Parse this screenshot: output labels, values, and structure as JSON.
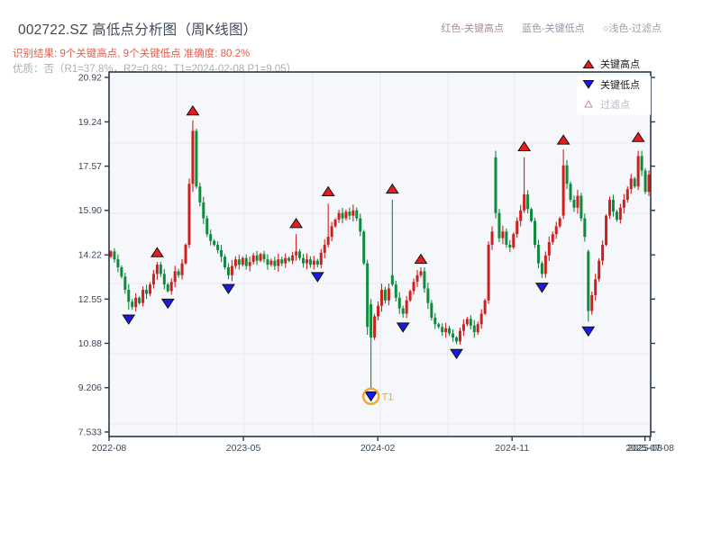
{
  "header": {
    "title": "002722.SZ 高低点分析图（周K线图）",
    "result_line": "识别结果: 9个关键高点, 9个关键低点  准确度: 80.2%",
    "quality_line": "优质：否（R1=37.8%，R2=0.89；T1=2024-02-08 P1=9.05）",
    "legend_top": [
      {
        "label": "红色-关键高点",
        "color": "#a88f8f"
      },
      {
        "label": "蓝色-关键低点",
        "color": "#8f97a8"
      },
      {
        "label": "○浅色-过滤点",
        "color": "#98a1aa"
      }
    ]
  },
  "on_chart_legend": {
    "items": [
      {
        "label": "关键高点",
        "type": "up",
        "color": "#e41d1d",
        "text_color": "#1b1b1b"
      },
      {
        "label": "关键低点",
        "type": "down",
        "color": "#1a1ae0",
        "text_color": "#1b1b1b"
      },
      {
        "label": "过滤点",
        "type": "filtered",
        "color": "#ffffff",
        "text_color": "#b3bac1"
      }
    ]
  },
  "chart_data": {
    "type": "candlestick",
    "title": "002722.SZ 高低点分析图（周K线图）",
    "xlabel": "",
    "ylabel": "",
    "grid": true,
    "ylim": [
      7.36,
      21.12
    ],
    "y_ticks": [
      20.92,
      19.24,
      17.57,
      15.9,
      14.22,
      12.55,
      10.88,
      9.206,
      7.533
    ],
    "y_tick_labels": [
      "20.92",
      "19.24",
      "17.57",
      "15.90",
      "14.22",
      "12.55",
      "10.88",
      "9.206",
      "7.533"
    ],
    "x_ticks": [
      {
        "label": "2022-08",
        "i": -0.5
      },
      {
        "label": "2023-05",
        "i": 37.2
      },
      {
        "label": "2024-02",
        "i": 74.9
      },
      {
        "label": "2024-11",
        "i": 112.6
      },
      {
        "label": "2025-08",
        "i": 149.9
      },
      {
        "label": "2025-07-08",
        "i": 151.3
      }
    ],
    "n": 152,
    "first_open": 14.15,
    "wick_pad_base": 0.05,
    "wick_pad_var": 0.18,
    "closes": [
      14.35,
      14.05,
      13.75,
      13.4,
      12.9,
      12.45,
      12.25,
      12.6,
      12.4,
      12.9,
      12.75,
      13.1,
      13.5,
      13.85,
      13.5,
      13.1,
      12.85,
      13.2,
      13.6,
      13.45,
      13.9,
      14.6,
      16.9,
      18.9,
      16.8,
      16.2,
      15.6,
      15.0,
      14.75,
      14.6,
      14.4,
      14.15,
      13.75,
      13.45,
      13.8,
      14.05,
      13.85,
      14.1,
      13.8,
      13.95,
      14.2,
      14.0,
      14.25,
      14.05,
      13.85,
      14.0,
      13.8,
      14.05,
      13.9,
      14.1,
      14.0,
      14.2,
      14.35,
      14.1,
      13.9,
      14.05,
      13.85,
      14.0,
      13.85,
      14.3,
      14.6,
      14.9,
      15.3,
      15.55,
      15.8,
      15.6,
      15.85,
      15.7,
      15.9,
      15.6,
      15.1,
      13.9,
      11.5,
      11.1,
      11.9,
      12.3,
      12.9,
      12.5,
      12.95,
      13.1,
      12.6,
      12.2,
      12.0,
      12.5,
      12.85,
      13.2,
      13.45,
      13.6,
      12.95,
      12.4,
      11.85,
      11.6,
      11.5,
      11.3,
      11.45,
      11.25,
      11.1,
      10.95,
      11.35,
      11.6,
      11.8,
      11.55,
      11.3,
      11.6,
      12.0,
      12.5,
      14.6,
      15.1,
      15.8,
      14.85,
      15.1,
      14.6,
      14.5,
      15.0,
      15.5,
      15.9,
      16.5,
      15.95,
      15.5,
      14.6,
      13.9,
      13.5,
      14.2,
      14.7,
      15.0,
      15.3,
      15.6,
      17.6,
      16.9,
      16.3,
      16.0,
      16.45,
      15.6,
      14.9,
      12.1,
      12.7,
      13.3,
      14.0,
      14.6,
      15.7,
      16.3,
      15.85,
      15.55,
      16.0,
      16.3,
      16.7,
      17.1,
      16.8,
      17.95,
      17.4,
      16.6,
      17.25
    ],
    "overrides": {
      "5": {
        "l": 12.15
      },
      "13": {
        "h": 13.95
      },
      "16": {
        "l": 12.8
      },
      "22": {
        "h": 17.1
      },
      "23": {
        "h": 19.3,
        "l": 16.6
      },
      "33": {
        "l": 13.3
      },
      "52": {
        "h": 15.0
      },
      "58": {
        "l": 13.75
      },
      "61": {
        "h": 16.15
      },
      "72": {
        "l": 11.2
      },
      "73": {
        "o": 12.35,
        "l": 9.2
      },
      "79": {
        "o": 13.45,
        "h": 16.3
      },
      "82": {
        "l": 11.85
      },
      "87": {
        "h": 13.75
      },
      "97": {
        "l": 10.85
      },
      "108": {
        "o": 17.9,
        "h": 18.15,
        "l": 15.6
      },
      "116": {
        "h": 17.9
      },
      "121": {
        "l": 13.35
      },
      "127": {
        "o": 15.7,
        "h": 18.2
      },
      "134": {
        "o": 14.35,
        "l": 11.7
      },
      "148": {
        "h": 18.15
      }
    },
    "key_highs": [
      {
        "i": 13,
        "p": 14.15
      },
      {
        "i": 23,
        "p": 19.5
      },
      {
        "i": 52,
        "p": 15.25
      },
      {
        "i": 61,
        "p": 16.45
      },
      {
        "i": 79,
        "p": 16.55
      },
      {
        "i": 87,
        "p": 13.9
      },
      {
        "i": 116,
        "p": 18.15
      },
      {
        "i": 127,
        "p": 18.4
      },
      {
        "i": 148,
        "p": 18.5
      }
    ],
    "key_lows": [
      {
        "i": 5,
        "p": 11.95
      },
      {
        "i": 16,
        "p": 12.55
      },
      {
        "i": 33,
        "p": 13.1
      },
      {
        "i": 58,
        "p": 13.55
      },
      {
        "i": 73,
        "p": 9.05
      },
      {
        "i": 82,
        "p": 11.65
      },
      {
        "i": 97,
        "p": 10.65
      },
      {
        "i": 121,
        "p": 13.15
      },
      {
        "i": 134,
        "p": 11.5
      }
    ],
    "t1": {
      "i": 73,
      "p": 9.05,
      "label": "T1",
      "color": "#f2a430"
    },
    "colors": {
      "up": "#cf2020",
      "down": "#0e8b3d",
      "marker_high": "#e41d1d",
      "marker_low": "#1a1ae0",
      "marker_outline": "#111111",
      "filtered_stroke": "#cc8f8f",
      "plot_bg": "#f6f7fa",
      "grid": "#e7e9ed",
      "border": "#2b3947",
      "tick_text": "#3c4857"
    }
  }
}
